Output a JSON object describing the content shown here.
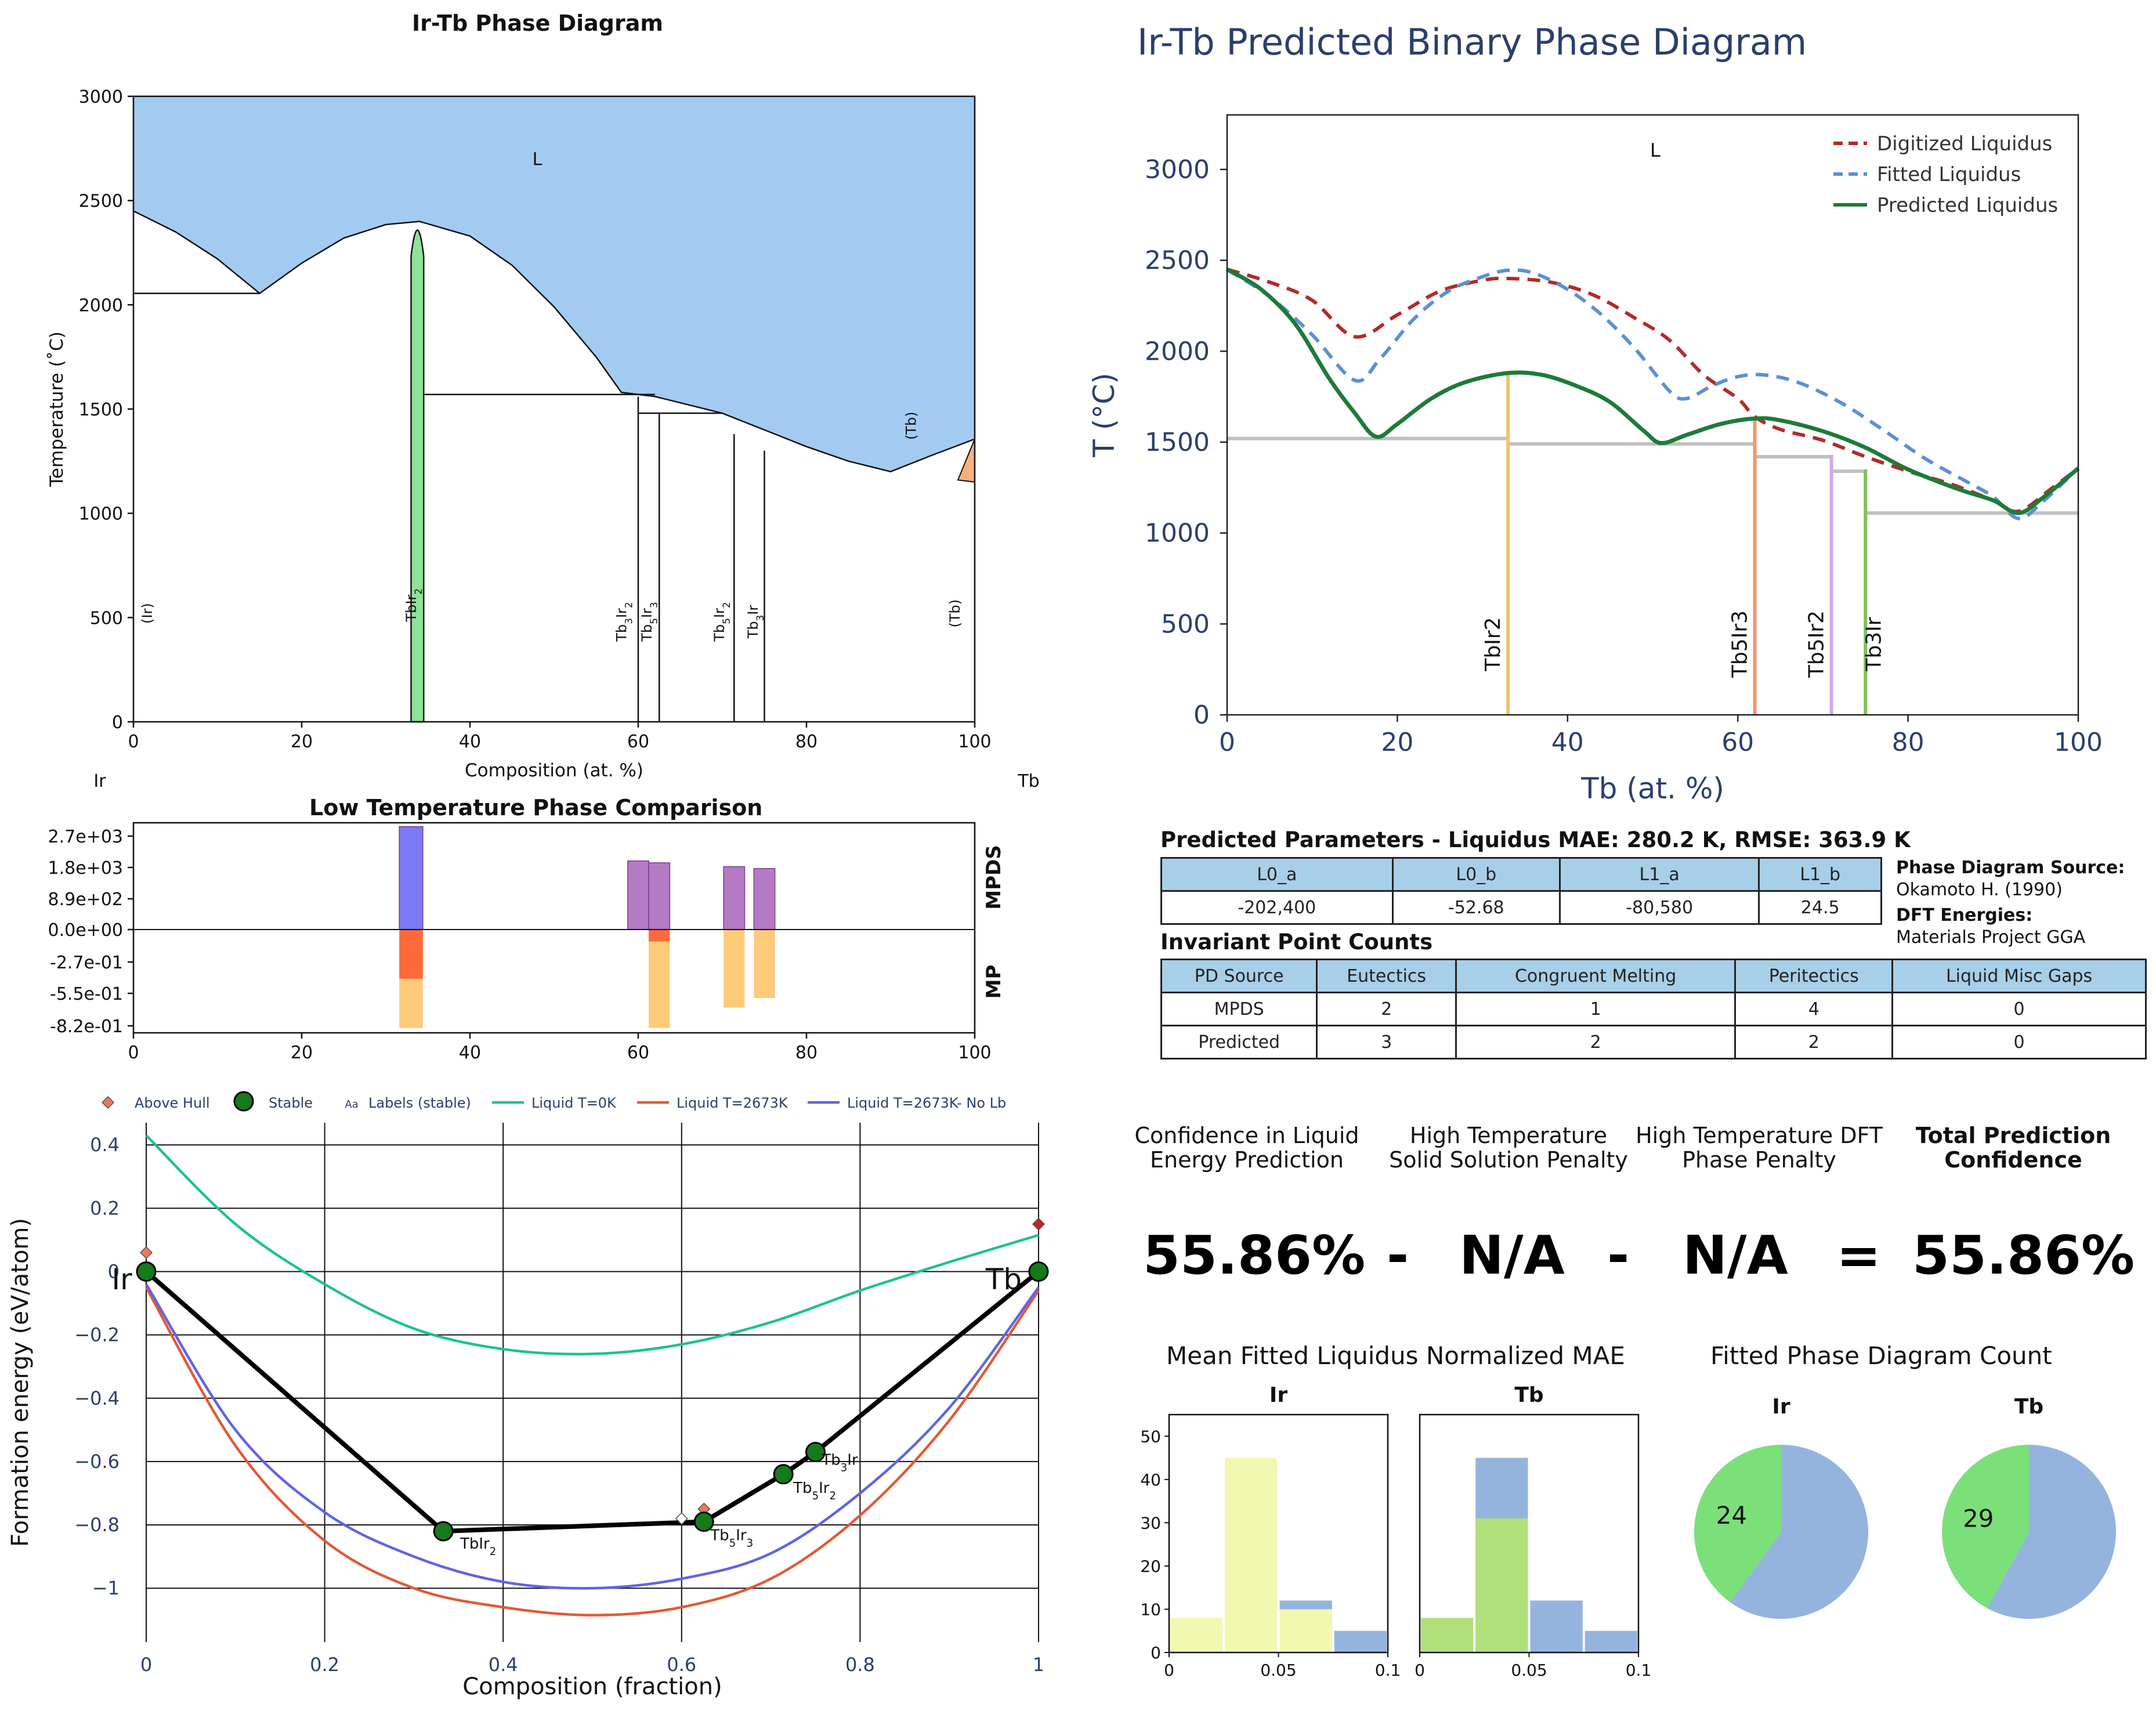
{
  "panels": {
    "phase_diagram": {
      "title": "Ir-Tb Phase Diagram",
      "xlabel": "Composition (at. %)",
      "ylabel": "Temperature (˚C)",
      "left_element": "Ir",
      "right_element": "Tb",
      "x_ticks": [
        "0",
        "20",
        "40",
        "60",
        "80",
        "100"
      ],
      "y_ticks": [
        "0",
        "500",
        "1000",
        "1500",
        "2000",
        "2500",
        "3000"
      ],
      "region_labels": {
        "liquid": "L",
        "tb_high": "(Tb)",
        "ir": "(Ir)",
        "tb": "(Tb)"
      },
      "phase_labels": {
        "tbir2": "TbIr",
        "tb3ir2": "Tb",
        "tb5ir3": "Tb",
        "tb5ir2": "Tb",
        "tb3ir": "Tb"
      }
    },
    "predicted": {
      "title": "Ir-Tb Predicted Binary Phase Diagram",
      "xlabel": "Tb (at. %)",
      "ylabel": "T (°C)",
      "x_ticks": [
        "0",
        "20",
        "40",
        "60",
        "80",
        "100"
      ],
      "y_ticks": [
        "0",
        "500",
        "1000",
        "1500",
        "2000",
        "2500",
        "3000"
      ],
      "liquid_label": "L",
      "legend": [
        "Digitized Liquidus",
        "Fitted Liquidus",
        "Predicted Liquidus"
      ],
      "phase_labels": [
        "TbIr2",
        "Tb5Ir3",
        "Tb5Ir2",
        "Tb3Ir"
      ]
    },
    "low_temp": {
      "title": "Low Temperature Phase Comparison",
      "y_ticks": [
        "2.7e+03",
        "1.8e+03",
        "8.9e+02",
        "0.0e+00",
        "-2.7e-01",
        "-5.5e-01",
        "-8.2e-01"
      ],
      "x_ticks": [
        "0",
        "20",
        "40",
        "60",
        "80",
        "100"
      ],
      "side_labels": {
        "top": "MPDS",
        "bottom": "MP"
      }
    },
    "hull": {
      "xlabel": "Composition (fraction)",
      "ylabel": "Formation energy (eV/atom)",
      "x_ticks": [
        "0",
        "0.2",
        "0.4",
        "0.6",
        "0.8",
        "1"
      ],
      "y_ticks": [
        "0.4",
        "0.2",
        "0",
        "−0.2",
        "−0.4",
        "−0.6",
        "−0.8",
        "−1"
      ],
      "legend": [
        "Above Hull",
        "Stable",
        "Labels (stable)",
        "Liquid T=0K",
        "Liquid T=2673K",
        "Liquid T=2673K- No Lb"
      ],
      "legend_aa": "Aa",
      "end_labels": {
        "left": "Ir",
        "right": "Tb"
      },
      "point_labels": {
        "tbir2": "TbIr",
        "tb5ir3": "Tb",
        "tb5ir2": "Tb",
        "tb3ir": "Tb"
      }
    },
    "params": {
      "title": "Predicted Parameters - Liquidus MAE: 280.2 K, RMSE: 363.9 K",
      "headers": [
        "L0_a",
        "L0_b",
        "L1_a",
        "L1_b"
      ],
      "values": [
        "-202,400",
        "-52.68",
        "-80,580",
        "24.5"
      ],
      "source_title": "Phase Diagram Source:",
      "source": "Okamoto H. (1990)",
      "dft_title": "DFT Energies:",
      "dft": "Materials Project GGA"
    },
    "invariants": {
      "title": "Invariant Point Counts",
      "headers": [
        "PD Source",
        "Eutectics",
        "Congruent Melting",
        "Peritectics",
        "Liquid Misc Gaps"
      ],
      "rows": [
        [
          "MPDS",
          "2",
          "1",
          "4",
          "0"
        ],
        [
          "Predicted",
          "3",
          "2",
          "2",
          "0"
        ]
      ]
    },
    "confidence": {
      "headers": [
        "Confidence in Liquid Energy Prediction",
        "High Temperature Solid Solution Penalty",
        "High Temperature DFT Phase Penalty",
        "Total Prediction Confidence"
      ],
      "values": [
        "55.86%",
        "-",
        "N/A",
        "-",
        "N/A",
        "=",
        "55.86%"
      ]
    },
    "mae_hist": {
      "title": "Mean Fitted Liquidus Normalized MAE",
      "subtitles": [
        "Ir",
        "Tb"
      ],
      "y_ticks": [
        "0",
        "10",
        "20",
        "30",
        "40",
        "50"
      ],
      "x_ticks": [
        "0",
        "0.05",
        "0.1"
      ]
    },
    "pies": {
      "title": "Fitted Phase Diagram Count",
      "subtitles": [
        "Ir",
        "Tb"
      ],
      "labels": [
        "24",
        "29"
      ]
    }
  },
  "chart_data": [
    {
      "type": "area",
      "name_ref": "phase_diagram",
      "x_range": [
        0,
        100
      ],
      "y_range": [
        0,
        3000
      ],
      "liquidus": [
        [
          0,
          2450
        ],
        [
          5,
          2350
        ],
        [
          10,
          2220
        ],
        [
          15,
          2055
        ],
        [
          20,
          2200
        ],
        [
          25,
          2320
        ],
        [
          30,
          2385
        ],
        [
          34,
          2400
        ],
        [
          40,
          2330
        ],
        [
          45,
          2190
        ],
        [
          50,
          1990
        ],
        [
          55,
          1750
        ],
        [
          58,
          1580
        ],
        [
          62,
          1560
        ],
        [
          65,
          1530
        ],
        [
          70,
          1480
        ],
        [
          75,
          1400
        ],
        [
          80,
          1320
        ],
        [
          85,
          1250
        ],
        [
          90,
          1200
        ],
        [
          95,
          1280
        ],
        [
          100,
          1356
        ]
      ],
      "eutectic_lines": [
        [
          0,
          15,
          2055
        ],
        [
          34,
          62,
          1570
        ],
        [
          60,
          70,
          1480
        ]
      ],
      "compound_lines": [
        [
          60,
          0,
          1560
        ],
        [
          62.5,
          0,
          1480
        ],
        [
          71.4,
          0,
          1380
        ],
        [
          75,
          0,
          1300
        ]
      ],
      "tbir2_phase": {
        "x": [
          33,
          34.5
        ],
        "top": 2400
      },
      "tb_corner": [
        [
          98,
          1160
        ],
        [
          100,
          1356
        ],
        [
          100,
          1150
        ]
      ],
      "liquid_color": "#a3cbf2",
      "tbir2_color": "#8de39a",
      "tb_color": "#f7b27a"
    },
    {
      "type": "line",
      "name_ref": "predicted",
      "x_range": [
        0,
        100
      ],
      "y_range": [
        0,
        3300
      ],
      "series": [
        {
          "name": "Digitized Liquidus",
          "color": "#b22a2a",
          "dash": "dashed",
          "points": [
            [
              0,
              2450
            ],
            [
              5,
              2380
            ],
            [
              10,
              2280
            ],
            [
              15,
              2080
            ],
            [
              20,
              2200
            ],
            [
              25,
              2330
            ],
            [
              30,
              2390
            ],
            [
              33,
              2400
            ],
            [
              38,
              2380
            ],
            [
              43,
              2310
            ],
            [
              48,
              2180
            ],
            [
              52,
              2060
            ],
            [
              56,
              1870
            ],
            [
              60,
              1740
            ],
            [
              62,
              1640
            ],
            [
              65,
              1570
            ],
            [
              70,
              1510
            ],
            [
              75,
              1420
            ],
            [
              80,
              1340
            ],
            [
              85,
              1270
            ],
            [
              90,
              1180
            ],
            [
              93,
              1120
            ],
            [
              97,
              1250
            ],
            [
              100,
              1356
            ]
          ]
        },
        {
          "name": "Fitted Liquidus",
          "color": "#5b8fd6",
          "dash": "dashed",
          "points": [
            [
              0,
              2450
            ],
            [
              5,
              2300
            ],
            [
              10,
              2090
            ],
            [
              15,
              1840
            ],
            [
              18,
              1960
            ],
            [
              22,
              2180
            ],
            [
              26,
              2330
            ],
            [
              30,
              2410
            ],
            [
              33,
              2445
            ],
            [
              36,
              2430
            ],
            [
              40,
              2340
            ],
            [
              44,
              2200
            ],
            [
              48,
              2010
            ],
            [
              52,
              1780
            ],
            [
              54,
              1740
            ],
            [
              57,
              1810
            ],
            [
              60,
              1860
            ],
            [
              63,
              1870
            ],
            [
              67,
              1830
            ],
            [
              72,
              1720
            ],
            [
              77,
              1570
            ],
            [
              82,
              1410
            ],
            [
              87,
              1280
            ],
            [
              90,
              1200
            ],
            [
              93,
              1080
            ],
            [
              96,
              1180
            ],
            [
              100,
              1356
            ]
          ]
        },
        {
          "name": "Predicted Liquidus",
          "color": "#1e7a38",
          "dash": "solid",
          "points": [
            [
              0,
              2450
            ],
            [
              4,
              2340
            ],
            [
              8,
              2150
            ],
            [
              12,
              1850
            ],
            [
              15,
              1660
            ],
            [
              17.5,
              1530
            ],
            [
              20,
              1600
            ],
            [
              24,
              1740
            ],
            [
              28,
              1830
            ],
            [
              33,
              1880
            ],
            [
              37,
              1870
            ],
            [
              41,
              1810
            ],
            [
              45,
              1720
            ],
            [
              49,
              1560
            ],
            [
              51,
              1495
            ],
            [
              54,
              1540
            ],
            [
              58,
              1600
            ],
            [
              62,
              1630
            ],
            [
              65,
              1620
            ],
            [
              70,
              1560
            ],
            [
              75,
              1470
            ],
            [
              80,
              1350
            ],
            [
              86,
              1240
            ],
            [
              90,
              1180
            ],
            [
              93,
              1110
            ],
            [
              96,
              1200
            ],
            [
              100,
              1356
            ]
          ]
        }
      ],
      "solidus_lines": [
        [
          0,
          33,
          1520
        ],
        [
          33,
          62,
          1490
        ],
        [
          62,
          71,
          1420
        ],
        [
          71,
          75,
          1340
        ],
        [
          75,
          100,
          1110
        ]
      ],
      "phases": [
        {
          "label": "TbIr2",
          "x": 33,
          "top": 1890,
          "color": "#f2c36b"
        },
        {
          "label": "Tb5Ir3",
          "x": 62,
          "top": 1640,
          "color": "#ea9870"
        },
        {
          "label": "Tb5Ir2",
          "x": 71,
          "top": 1430,
          "color": "#d4a8e6"
        },
        {
          "label": "Tb3Ir",
          "x": 75,
          "top": 1350,
          "color": "#7cc456"
        }
      ]
    },
    {
      "type": "bar",
      "name_ref": "low_temp",
      "x_range": [
        0,
        100
      ],
      "top_bars": [
        {
          "x": 33,
          "w": 2.8,
          "v": 2700,
          "color": "#7a7af5"
        },
        {
          "x": 60,
          "w": 2.5,
          "v": 1800,
          "color": "#b57ac4"
        },
        {
          "x": 62.5,
          "w": 2.5,
          "v": 1750,
          "color": "#b57ac4"
        },
        {
          "x": 71.4,
          "w": 2.5,
          "v": 1650,
          "color": "#b57ac4"
        },
        {
          "x": 75,
          "w": 2.5,
          "v": 1600,
          "color": "#b57ac4"
        }
      ],
      "bottom_bars": [
        {
          "x": 33,
          "w": 2.8,
          "v": -0.82,
          "red": -0.41,
          "color": "#fdca7a"
        },
        {
          "x": 62.5,
          "w": 2.5,
          "v": -0.82,
          "red": -0.1,
          "color": "#fdca7a"
        },
        {
          "x": 71.4,
          "w": 2.5,
          "v": -0.65
        },
        {
          "x": 75,
          "w": 2.5,
          "v": -0.57
        }
      ]
    },
    {
      "type": "scatter",
      "name_ref": "hull",
      "x_range": [
        0,
        1
      ],
      "y_range": [
        -1.17,
        0.47
      ],
      "stable_points": [
        [
          0,
          0
        ],
        [
          0.333,
          -0.82
        ],
        [
          0.625,
          -0.79
        ],
        [
          0.714,
          -0.64
        ],
        [
          0.75,
          -0.57
        ],
        [
          1,
          0
        ]
      ],
      "above_hull": [
        [
          0,
          0.06
        ],
        [
          0.625,
          -0.75
        ],
        [
          0.6,
          -0.78
        ],
        [
          1,
          0.15
        ],
        [
          1,
          0.01
        ]
      ],
      "curves": [
        {
          "name": "Liquid T=0K",
          "color": "#1ec28d",
          "points": [
            [
              0,
              0.43
            ],
            [
              0.1,
              0.15
            ],
            [
              0.2,
              -0.04
            ],
            [
              0.3,
              -0.18
            ],
            [
              0.4,
              -0.245
            ],
            [
              0.5,
              -0.26
            ],
            [
              0.6,
              -0.23
            ],
            [
              0.7,
              -0.16
            ],
            [
              0.8,
              -0.06
            ],
            [
              0.9,
              0.03
            ],
            [
              1,
              0.115
            ]
          ]
        },
        {
          "name": "Liquid T=2673K",
          "color": "#e05a37",
          "points": [
            [
              0,
              -0.05
            ],
            [
              0.1,
              -0.55
            ],
            [
              0.2,
              -0.85
            ],
            [
              0.3,
              -1.0
            ],
            [
              0.4,
              -1.06
            ],
            [
              0.5,
              -1.085
            ],
            [
              0.6,
              -1.06
            ],
            [
              0.7,
              -0.97
            ],
            [
              0.8,
              -0.77
            ],
            [
              0.9,
              -0.47
            ],
            [
              1,
              -0.06
            ]
          ]
        },
        {
          "name": "Liquid T=2673K- No Lb",
          "color": "#6064e3",
          "points": [
            [
              0,
              -0.04
            ],
            [
              0.1,
              -0.5
            ],
            [
              0.2,
              -0.76
            ],
            [
              0.3,
              -0.9
            ],
            [
              0.4,
              -0.98
            ],
            [
              0.5,
              -1.0
            ],
            [
              0.6,
              -0.97
            ],
            [
              0.7,
              -0.89
            ],
            [
              0.8,
              -0.7
            ],
            [
              0.9,
              -0.43
            ],
            [
              1,
              -0.05
            ]
          ]
        }
      ]
    },
    {
      "type": "bar",
      "name_ref": "mae_hist",
      "x_range": [
        0,
        0.1
      ],
      "y_range": [
        0,
        55
      ],
      "bins": [
        [
          0,
          0.025
        ],
        [
          0.025,
          0.05
        ],
        [
          0.05,
          0.075
        ],
        [
          0.075,
          0.1
        ]
      ],
      "ir": {
        "yellow": [
          8,
          45,
          10,
          0
        ],
        "blue": [
          0,
          0,
          12,
          5
        ]
      },
      "tb": {
        "green": [
          8,
          31,
          0,
          0
        ],
        "blue": [
          0,
          45,
          12,
          5
        ]
      }
    },
    {
      "type": "pie",
      "name_ref": "pies",
      "ir": {
        "green": 24,
        "blue": 36
      },
      "tb": {
        "green": 29,
        "blue": 40
      }
    }
  ]
}
